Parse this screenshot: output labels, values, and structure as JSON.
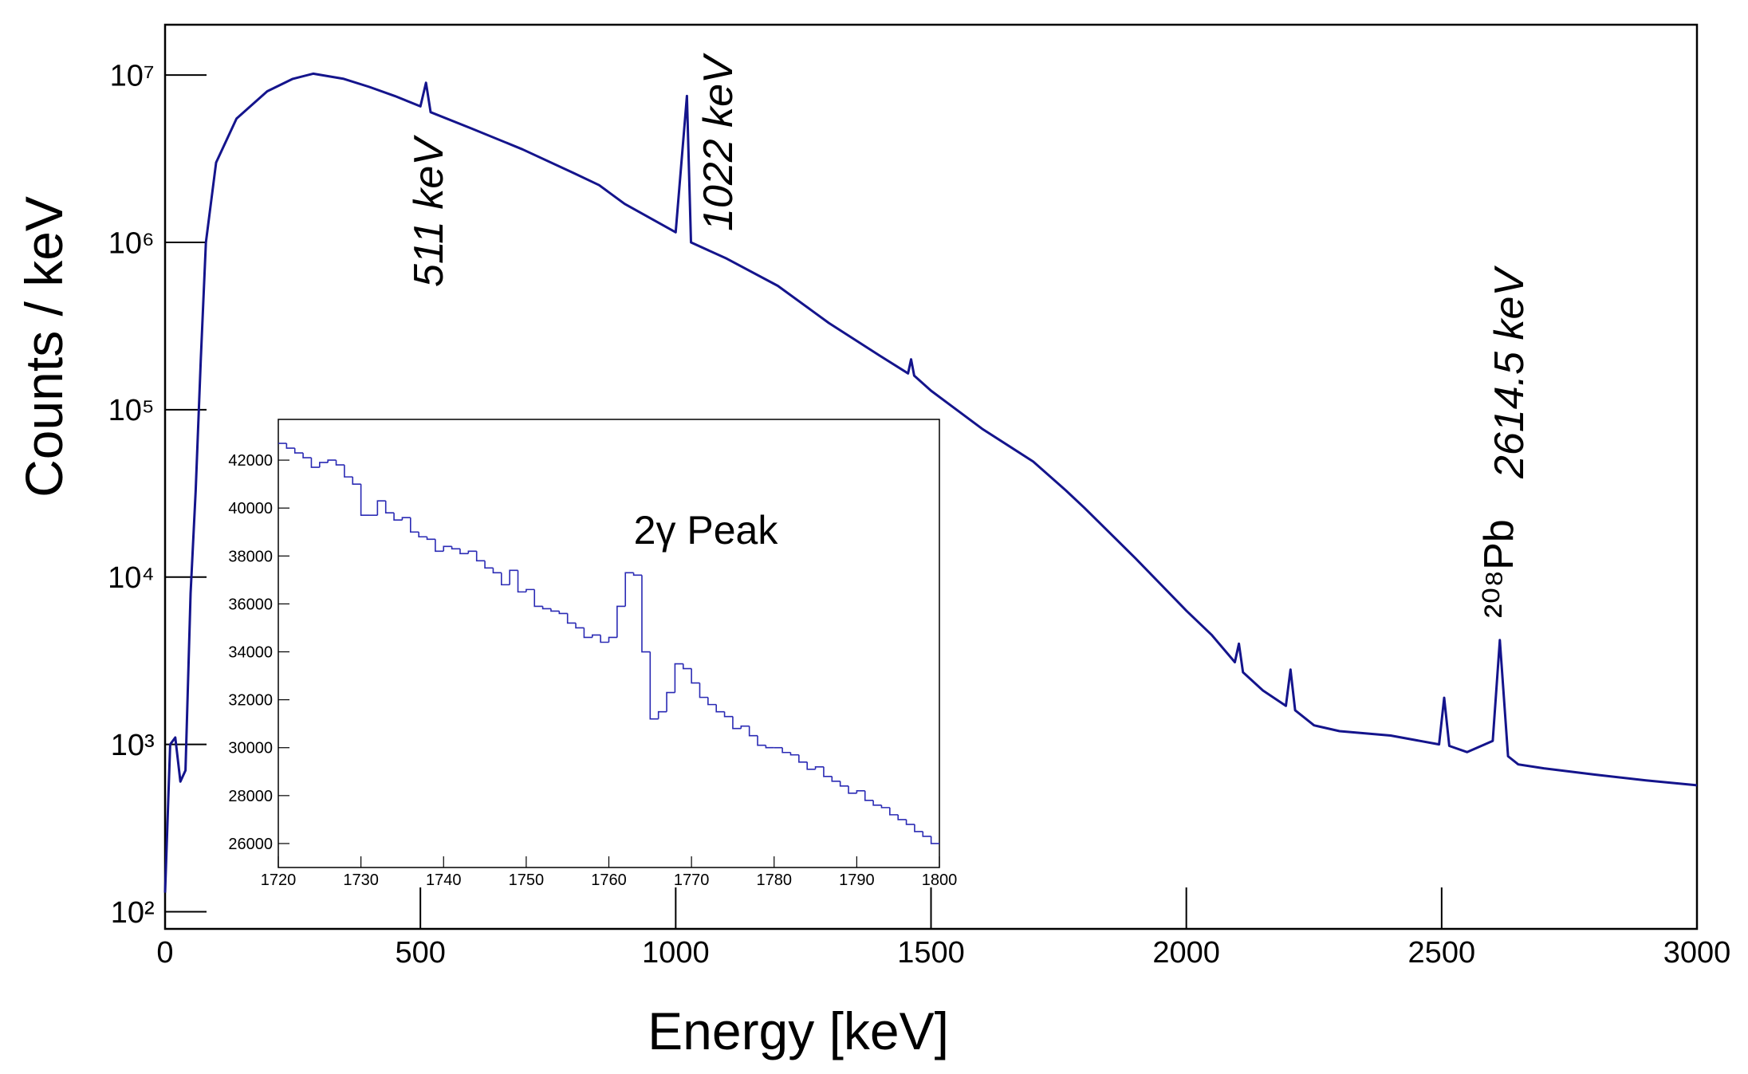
{
  "chart_data": [
    {
      "type": "line",
      "xlabel": "Energy [keV]",
      "ylabel": "Counts / keV",
      "log_y": true,
      "color": "#14148c",
      "x": [
        0,
        10,
        20,
        30,
        40,
        50,
        60,
        70,
        80,
        100,
        140,
        200,
        250,
        290,
        350,
        400,
        450,
        500,
        511,
        520,
        600,
        700,
        800,
        850,
        900,
        1000,
        1022,
        1030,
        1100,
        1200,
        1300,
        1400,
        1455,
        1461,
        1467,
        1500,
        1600,
        1700,
        1764,
        1800,
        1900,
        2000,
        2050,
        2095,
        2103,
        2111,
        2150,
        2195,
        2204,
        2213,
        2250,
        2300,
        2400,
        2495,
        2505,
        2515,
        2550,
        2600,
        2614,
        2630,
        2650,
        2700,
        2800,
        2900,
        3000
      ],
      "values": [
        130,
        1000,
        1100,
        600,
        700,
        8000,
        33000,
        200000,
        1000000,
        3000000,
        5500000,
        8000000,
        9500000,
        10200000,
        9500000,
        8500000,
        7500000,
        6500000,
        9000000,
        6000000,
        4800000,
        3600000,
        2600000,
        2200000,
        1700000,
        1150000,
        7500000,
        1000000,
        800000,
        550000,
        330000,
        210000,
        165000,
        200000,
        160000,
        130000,
        77000,
        49000,
        33000,
        26000,
        13000,
        6300,
        4500,
        3100,
        4000,
        2700,
        2100,
        1700,
        2800,
        1600,
        1300,
        1200,
        1130,
        1000,
        1900,
        980,
        900,
        1050,
        4200,
        850,
        760,
        720,
        660,
        610,
        570
      ],
      "xlim": [
        0,
        3000
      ],
      "xticks": [
        0,
        500,
        1000,
        1500,
        2000,
        2500,
        3000
      ],
      "ylim": [
        79,
        20000000
      ],
      "yticks": [
        {
          "value": 100,
          "label": "10²"
        },
        {
          "value": 1000,
          "label": "10³"
        },
        {
          "value": 10000,
          "label": "10⁴"
        },
        {
          "value": 100000,
          "label": "10⁵"
        },
        {
          "value": 1000000,
          "label": "10⁶"
        },
        {
          "value": 10000000,
          "label": "10⁷"
        }
      ],
      "annotations": [
        "511 keV",
        "1022 keV",
        "2614.5 keV",
        "²⁰⁸Pb"
      ]
    },
    {
      "type": "histogram",
      "title": "2γ Peak",
      "color": "#2a2ab4",
      "bins": [
        1720,
        1721,
        1722,
        1723,
        1724,
        1725,
        1726,
        1727,
        1728,
        1729,
        1730,
        1731,
        1732,
        1733,
        1734,
        1735,
        1736,
        1737,
        1738,
        1739,
        1740,
        1741,
        1742,
        1743,
        1744,
        1745,
        1746,
        1747,
        1748,
        1749,
        1750,
        1751,
        1752,
        1753,
        1754,
        1755,
        1756,
        1757,
        1758,
        1759,
        1760,
        1761,
        1762,
        1763,
        1764,
        1765,
        1766,
        1767,
        1768,
        1769,
        1770,
        1771,
        1772,
        1773,
        1774,
        1775,
        1776,
        1777,
        1778,
        1779,
        1780,
        1781,
        1782,
        1783,
        1784,
        1785,
        1786,
        1787,
        1788,
        1789,
        1790,
        1791,
        1792,
        1793,
        1794,
        1795,
        1796,
        1797,
        1798,
        1799,
        1800
      ],
      "values": [
        42700,
        42500,
        42300,
        42100,
        41700,
        41900,
        42000,
        41800,
        41300,
        41000,
        39700,
        39700,
        40300,
        39800,
        39500,
        39600,
        39000,
        38800,
        38700,
        38200,
        38400,
        38300,
        38100,
        38200,
        37800,
        37500,
        37300,
        36800,
        37400,
        36500,
        36600,
        35900,
        35800,
        35700,
        35600,
        35200,
        35000,
        34600,
        34700,
        34400,
        34600,
        35900,
        37300,
        37200,
        34000,
        31200,
        31500,
        32300,
        33500,
        33300,
        32700,
        32100,
        31800,
        31500,
        31300,
        30800,
        30900,
        30500,
        30100,
        30000,
        30000,
        29800,
        29700,
        29400,
        29100,
        29200,
        28800,
        28600,
        28400,
        28100,
        28200,
        27800,
        27600,
        27500,
        27200,
        27000,
        26800,
        26500,
        26300,
        26000
      ],
      "xlim": [
        1720,
        1800
      ],
      "xticks": [
        1720,
        1730,
        1740,
        1750,
        1760,
        1770,
        1780,
        1790,
        1800
      ],
      "ylim": [
        25000,
        43700
      ],
      "yticks": [
        26000,
        28000,
        30000,
        32000,
        34000,
        36000,
        38000,
        40000,
        42000
      ]
    }
  ]
}
